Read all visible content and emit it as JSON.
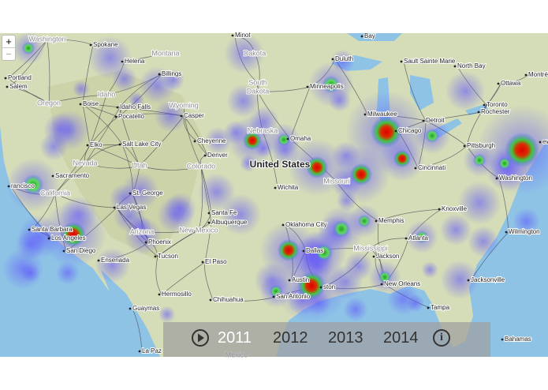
{
  "zoom": {
    "in": "+",
    "out": "−"
  },
  "map_labels": [
    "Washington",
    "Spokane",
    "Helena",
    "Montana",
    "Billings",
    "Portland",
    "Salem",
    "Oregon",
    "Boise",
    "Idaho",
    "Idaho Falls",
    "Pocatello",
    "Wyoming",
    "Casper",
    "Minot",
    "Dakota",
    "South",
    "Dakota",
    "Duluth",
    "Bay",
    "Sault Sainte Marie",
    "North Bay",
    "Ottawa",
    "Montréal",
    "Minneapolis",
    "Toronto",
    "Rochester",
    "Milwaukee",
    "Detroit",
    "Chicago",
    "Nebraska",
    "Omaha",
    "Cheyenne",
    "Denver",
    "Colorado",
    "Elko",
    "Salt Lake City",
    "Nevada",
    "Utah",
    "Sacramento",
    "rancisco",
    "United States",
    "Wichita",
    "Missouri",
    "Cincinnati",
    "Pittsburgh",
    "Washington",
    "ew",
    "St. George",
    "Las Vegas",
    "California",
    "Santa Fe",
    "Albuquerque",
    "New Mexico",
    "Arizona",
    "Phoenix",
    "Oklahoma City",
    "Memphis",
    "Knoxville",
    "Wilmington",
    "Atlanta",
    "Santa Barbara",
    "Los Angeles",
    "San Diego",
    "Ensenada",
    "Tucson",
    "El Paso",
    "Dallas",
    "Mississippi",
    "Jackson",
    "Austin",
    "ston",
    "New Orleans",
    "Jacksonville",
    "San Antonio",
    "Hermosillo",
    "Chihuahua",
    "Guaymas",
    "Tampa",
    "La Paz",
    "Bahamas",
    "Mexico"
  ],
  "timeline": {
    "years": [
      "2011",
      "2012",
      "2013",
      "2014"
    ],
    "selected": 0
  }
}
